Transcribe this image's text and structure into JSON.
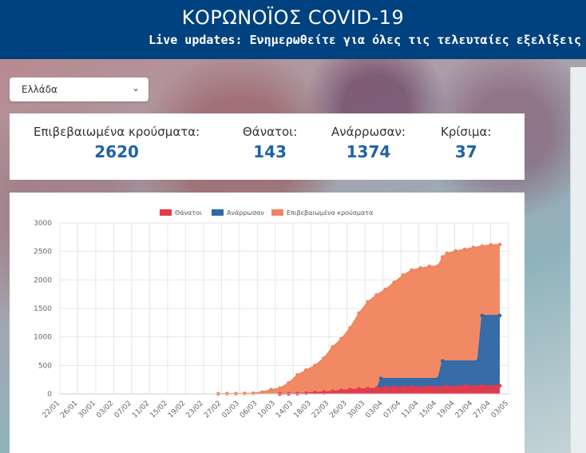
{
  "header": {
    "title": "ΚΟΡΩΝΟΪΟΣ COVID-19",
    "subtitle": "Live updates: Ενημερωθείτε για όλες τις τελευταίες εξελίξεις"
  },
  "country_select": {
    "selected": "Ελλάδα"
  },
  "stats": {
    "confirmed": {
      "label": "Επιβεβαιωμένα κρούσματα:",
      "value": "2620"
    },
    "deaths": {
      "label": "Θάνατοι:",
      "value": "143"
    },
    "recovered": {
      "label": "Ανάρρωσαν:",
      "value": "1374"
    },
    "critical": {
      "label": "Κρίσιμα:",
      "value": "37"
    }
  },
  "colors": {
    "header": "#00417f",
    "deaths": "#e8394a",
    "recovered": "#2d6aaa",
    "confirmed": "#f0845c",
    "stat_value": "#1d63a8"
  },
  "chart_data": {
    "type": "area",
    "title": "",
    "xlabel": "",
    "ylabel": "",
    "ylim": [
      0,
      3000
    ],
    "yticks": [
      "3000",
      "2500",
      "2000",
      "1500",
      "1000",
      "500",
      "0"
    ],
    "xticks": [
      "22/01",
      "26/01",
      "30/01",
      "03/02",
      "07/02",
      "11/02",
      "15/02",
      "19/02",
      "23/02",
      "27/02",
      "02/03",
      "06/03",
      "10/03",
      "14/03",
      "18/03",
      "22/03",
      "26/03",
      "30/03",
      "03/04",
      "07/04",
      "11/04",
      "15/04",
      "19/04",
      "23/04",
      "27/04",
      "03/05"
    ],
    "legend": [
      "Θάνατοι",
      "Ανάρρωσαν",
      "Επιβεβαιωμένα κρούσματα"
    ],
    "legend_position": "top",
    "x_range_days": [
      0,
      102
    ],
    "series": [
      {
        "name": "Επιβεβαιωμένα κρούσματα",
        "color": "#f0845c",
        "points": [
          [
            36,
            1
          ],
          [
            38,
            3
          ],
          [
            40,
            4
          ],
          [
            42,
            7
          ],
          [
            44,
            10
          ],
          [
            46,
            31
          ],
          [
            48,
            73
          ],
          [
            50,
            99
          ],
          [
            52,
            190
          ],
          [
            54,
            331
          ],
          [
            56,
            418
          ],
          [
            58,
            495
          ],
          [
            60,
            624
          ],
          [
            62,
            821
          ],
          [
            64,
            966
          ],
          [
            66,
            1156
          ],
          [
            68,
            1415
          ],
          [
            70,
            1613
          ],
          [
            72,
            1735
          ],
          [
            74,
            1832
          ],
          [
            76,
            1955
          ],
          [
            78,
            2081
          ],
          [
            80,
            2170
          ],
          [
            82,
            2207
          ],
          [
            84,
            2235
          ],
          [
            86,
            2245
          ],
          [
            87,
            2401
          ],
          [
            88,
            2463
          ],
          [
            90,
            2506
          ],
          [
            92,
            2534
          ],
          [
            94,
            2566
          ],
          [
            96,
            2591
          ],
          [
            98,
            2612
          ],
          [
            100,
            2620
          ]
        ]
      },
      {
        "name": "Ανάρρωσαν",
        "color": "#2d6aaa",
        "points": [
          [
            50,
            0
          ],
          [
            60,
            19
          ],
          [
            64,
            52
          ],
          [
            68,
            78
          ],
          [
            72,
            78
          ],
          [
            73,
            269
          ],
          [
            86,
            269
          ],
          [
            87,
            577
          ],
          [
            95,
            577
          ],
          [
            96,
            1374
          ],
          [
            100,
            1374
          ]
        ]
      },
      {
        "name": "Θάνατοι",
        "color": "#e8394a",
        "points": [
          [
            50,
            0
          ],
          [
            52,
            1
          ],
          [
            54,
            5
          ],
          [
            56,
            13
          ],
          [
            58,
            22
          ],
          [
            60,
            32
          ],
          [
            62,
            43
          ],
          [
            64,
            59
          ],
          [
            66,
            73
          ],
          [
            68,
            83
          ],
          [
            70,
            90
          ],
          [
            72,
            99
          ],
          [
            74,
            108
          ],
          [
            76,
            113
          ],
          [
            78,
            116
          ],
          [
            80,
            118
          ],
          [
            84,
            121
          ],
          [
            88,
            125
          ],
          [
            92,
            136
          ],
          [
            96,
            140
          ],
          [
            100,
            143
          ]
        ]
      }
    ]
  }
}
